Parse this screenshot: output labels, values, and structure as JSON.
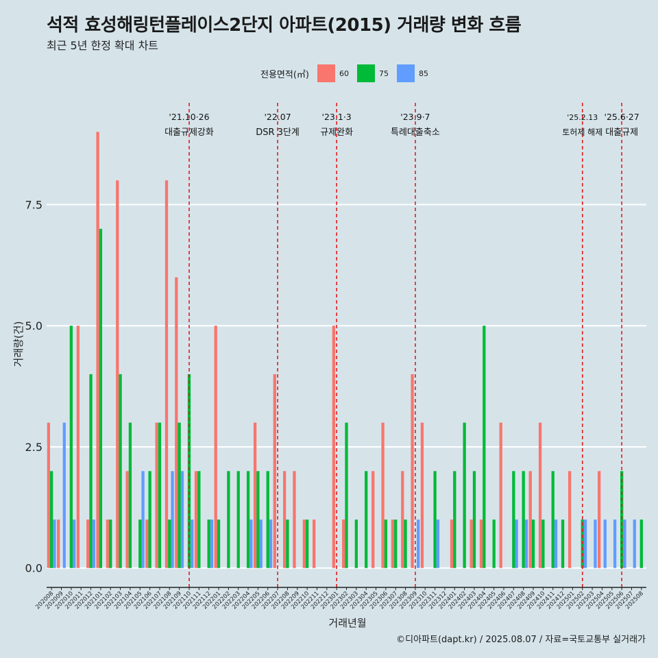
{
  "title": "석적 효성해링턴플레이스2단지 아파트(2015) 거래량 변화 흐름",
  "subtitle": "최근 5년 한정 확대 차트",
  "legend_title": "전용면적(㎡)",
  "caption": "©디아파트(dapt.kr) / 2025.08.07 / 자료=국토교통부 실거래가",
  "chart_data": {
    "type": "bar",
    "xlabel": "거래년월",
    "ylabel": "거래량(건)",
    "ylim": [
      -0.4,
      9.6
    ],
    "yticks": [
      0.0,
      2.5,
      5.0,
      7.5
    ],
    "ytick_labels": [
      "0.0",
      "2.5",
      "5.0",
      "7.5"
    ],
    "grid": true,
    "legend_position": "top",
    "categories": [
      "202008",
      "202009",
      "202010",
      "202011",
      "202012",
      "202101",
      "202102",
      "202103",
      "202104",
      "202105",
      "202106",
      "202107",
      "202108",
      "202109",
      "202110",
      "202111",
      "202112",
      "202201",
      "202202",
      "202203",
      "202204",
      "202205",
      "202206",
      "202207",
      "202208",
      "202209",
      "202210",
      "202211",
      "202212",
      "202301",
      "202302",
      "202303",
      "202304",
      "202305",
      "202306",
      "202307",
      "202308",
      "202309",
      "202310",
      "202311",
      "202312",
      "202401",
      "202402",
      "202403",
      "202404",
      "202405",
      "202406",
      "202407",
      "202408",
      "202409",
      "202410",
      "202411",
      "202412",
      "202501",
      "202502",
      "202503",
      "202504",
      "202505",
      "202506",
      "202507",
      "202508"
    ],
    "series": [
      {
        "name": "60",
        "color": "#f8766d",
        "values": [
          3,
          1,
          0,
          5,
          1,
          9,
          1,
          8,
          2,
          0,
          1,
          3,
          8,
          6,
          0,
          2,
          0,
          5,
          0,
          0,
          0,
          3,
          0,
          4,
          2,
          2,
          1,
          1,
          0,
          5,
          1,
          0,
          0,
          2,
          3,
          1,
          2,
          4,
          3,
          0,
          0,
          1,
          0,
          1,
          1,
          0,
          3,
          0,
          0,
          2,
          3,
          0,
          0,
          2,
          0,
          0,
          2,
          0,
          0,
          0,
          0
        ]
      },
      {
        "name": "75",
        "color": "#00ba38",
        "values": [
          2,
          0,
          5,
          0,
          4,
          7,
          1,
          4,
          3,
          1,
          2,
          3,
          1,
          3,
          4,
          2,
          1,
          1,
          2,
          2,
          2,
          2,
          2,
          0,
          1,
          0,
          1,
          0,
          0,
          0,
          3,
          1,
          2,
          0,
          1,
          1,
          1,
          0,
          0,
          2,
          0,
          2,
          3,
          2,
          5,
          1,
          0,
          2,
          2,
          1,
          1,
          2,
          1,
          0,
          1,
          0,
          0,
          0,
          2,
          0,
          1
        ]
      },
      {
        "name": "85",
        "color": "#619cff",
        "values": [
          1,
          3,
          1,
          0,
          1,
          0,
          0,
          0,
          0,
          2,
          0,
          0,
          2,
          2,
          1,
          0,
          1,
          0,
          0,
          0,
          1,
          1,
          1,
          0,
          0,
          0,
          0,
          0,
          0,
          0,
          0,
          0,
          0,
          0,
          0,
          0,
          0,
          1,
          0,
          1,
          0,
          0,
          0,
          0,
          0,
          0,
          0,
          1,
          1,
          0,
          0,
          1,
          0,
          0,
          1,
          1,
          1,
          1,
          1,
          1,
          0
        ]
      }
    ],
    "annotations": [
      {
        "date": "'21.10·26",
        "label": "대출규제강화",
        "category": "202110"
      },
      {
        "date": "'22.07",
        "label": "DSR 3단계",
        "category": "202207"
      },
      {
        "date": "'23.1·3",
        "label": "규제완화",
        "category": "202301"
      },
      {
        "date": "'23.9·7",
        "label": "특례대출축소",
        "category": "202309"
      },
      {
        "date": "'25.2.13",
        "label": "토허제 해제",
        "category": "202502"
      },
      {
        "date": "'25.6·27",
        "label": "대출규제",
        "category": "202506"
      }
    ]
  }
}
